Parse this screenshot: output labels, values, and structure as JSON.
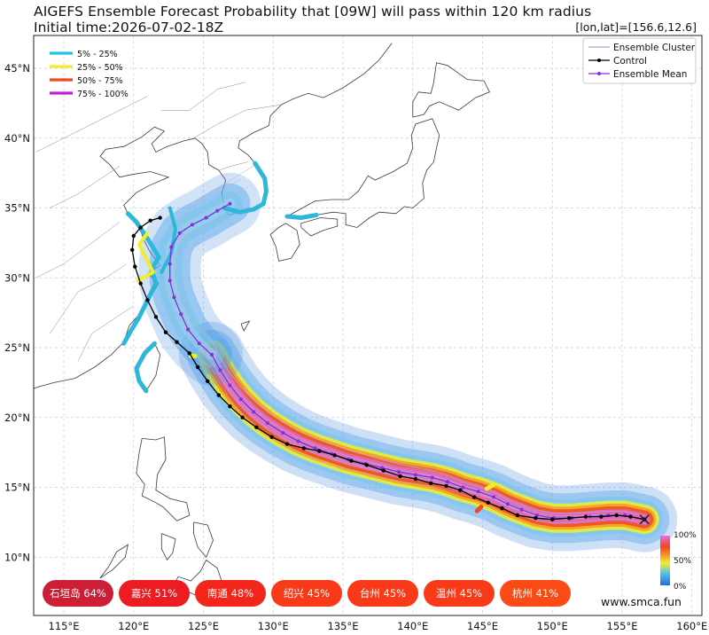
{
  "header": {
    "title": "AIGEFS Ensemble Forecast Probability that [09W] will pass within 120 km radius",
    "initial_time": "Initial time:2026-07-02-18Z",
    "coord": "[lon,lat]=[156.6,12.6]"
  },
  "axes": {
    "lon_ticks": [
      "115°E",
      "120°E",
      "125°E",
      "130°E",
      "135°E",
      "140°E",
      "145°E",
      "150°E",
      "155°E",
      "160°E"
    ],
    "lat_ticks": [
      "45°N",
      "40°N",
      "35°N",
      "30°N",
      "25°N",
      "20°N",
      "15°N",
      "10°N"
    ],
    "lon_range": [
      113,
      161
    ],
    "lat_range": [
      6.5,
      47.5
    ]
  },
  "prob_legend": {
    "items": [
      {
        "label": "5% - 25%",
        "color": "#22c3e6"
      },
      {
        "label": "25% - 50%",
        "color": "#f2ef2a"
      },
      {
        "label": "50% - 75%",
        "color": "#ee4a22"
      },
      {
        "label": "75% - 100%",
        "color": "#c21fd4"
      }
    ]
  },
  "track_legend": {
    "items": [
      {
        "label": "Ensemble Cluster",
        "color": "#a6a6ce",
        "style": "line"
      },
      {
        "label": "Control",
        "color": "#000000",
        "style": "line-dot"
      },
      {
        "label": "Ensemble Mean",
        "color": "#8a2be2",
        "style": "line-dot"
      }
    ]
  },
  "colorbar": {
    "top": "100%",
    "mid": "50%",
    "bottom": "0%"
  },
  "cities": [
    {
      "name": "石垣岛 64%",
      "color": "#cc1f36"
    },
    {
      "name": "嘉兴 51%",
      "color": "#ec1c22"
    },
    {
      "name": "南通 48%",
      "color": "#f3261c"
    },
    {
      "name": "绍兴 45%",
      "color": "#f83a19"
    },
    {
      "name": "台州 45%",
      "color": "#f83a19"
    },
    {
      "name": "温州 45%",
      "color": "#f83a19"
    },
    {
      "name": "杭州 41%",
      "color": "#fa4a15"
    }
  ],
  "website": "www.smca.fun",
  "tracks": {
    "control": [
      [
        156.6,
        12.7
      ],
      [
        155.6,
        12.9
      ],
      [
        154.6,
        13.0
      ],
      [
        153.5,
        12.9
      ],
      [
        152.4,
        12.9
      ],
      [
        151.2,
        12.8
      ],
      [
        150.0,
        12.7
      ],
      [
        148.8,
        12.8
      ],
      [
        147.5,
        13.0
      ],
      [
        146.4,
        13.5
      ],
      [
        145.4,
        13.9
      ],
      [
        144.4,
        14.3
      ],
      [
        143.4,
        14.8
      ],
      [
        142.4,
        15.1
      ],
      [
        141.3,
        15.3
      ],
      [
        140.2,
        15.6
      ],
      [
        139.1,
        15.8
      ],
      [
        137.9,
        16.2
      ],
      [
        136.7,
        16.6
      ],
      [
        135.6,
        16.9
      ],
      [
        134.4,
        17.3
      ],
      [
        133.3,
        17.6
      ],
      [
        132.2,
        17.8
      ],
      [
        131.0,
        18.1
      ],
      [
        129.9,
        18.6
      ],
      [
        128.8,
        19.3
      ],
      [
        127.8,
        20.0
      ],
      [
        126.9,
        20.8
      ],
      [
        126.1,
        21.6
      ],
      [
        125.3,
        22.6
      ],
      [
        124.6,
        23.6
      ],
      [
        124.0,
        24.6
      ],
      [
        123.1,
        25.4
      ],
      [
        122.3,
        26.1
      ],
      [
        121.6,
        27.2
      ],
      [
        121.0,
        28.4
      ],
      [
        120.5,
        29.6
      ],
      [
        120.1,
        30.8
      ],
      [
        119.9,
        32.0
      ],
      [
        120.0,
        33.0
      ],
      [
        120.5,
        33.6
      ],
      [
        121.2,
        34.1
      ],
      [
        121.9,
        34.3
      ]
    ],
    "mean": [
      [
        156.6,
        12.7
      ],
      [
        155.2,
        13.0
      ],
      [
        154.0,
        13.0
      ],
      [
        152.7,
        12.9
      ],
      [
        151.4,
        12.8
      ],
      [
        150.1,
        12.8
      ],
      [
        148.9,
        13.0
      ],
      [
        147.8,
        13.4
      ],
      [
        146.8,
        13.8
      ],
      [
        145.8,
        14.3
      ],
      [
        144.7,
        14.7
      ],
      [
        143.6,
        15.0
      ],
      [
        142.5,
        15.4
      ],
      [
        141.4,
        15.7
      ],
      [
        140.2,
        15.9
      ],
      [
        139.0,
        16.1
      ],
      [
        137.8,
        16.4
      ],
      [
        136.6,
        16.7
      ],
      [
        135.4,
        17.0
      ],
      [
        134.2,
        17.4
      ],
      [
        133.0,
        17.8
      ],
      [
        131.8,
        18.3
      ],
      [
        130.7,
        18.9
      ],
      [
        129.6,
        19.6
      ],
      [
        128.6,
        20.4
      ],
      [
        127.7,
        21.3
      ],
      [
        126.9,
        22.3
      ],
      [
        126.2,
        23.4
      ],
      [
        125.6,
        24.5
      ],
      [
        124.7,
        25.3
      ],
      [
        123.9,
        26.3
      ],
      [
        123.4,
        27.4
      ],
      [
        122.9,
        28.6
      ],
      [
        122.6,
        29.8
      ],
      [
        122.6,
        31.0
      ],
      [
        122.7,
        32.2
      ],
      [
        123.3,
        33.2
      ],
      [
        124.2,
        33.8
      ],
      [
        125.2,
        34.3
      ],
      [
        126.0,
        34.8
      ],
      [
        126.9,
        35.3
      ]
    ]
  }
}
